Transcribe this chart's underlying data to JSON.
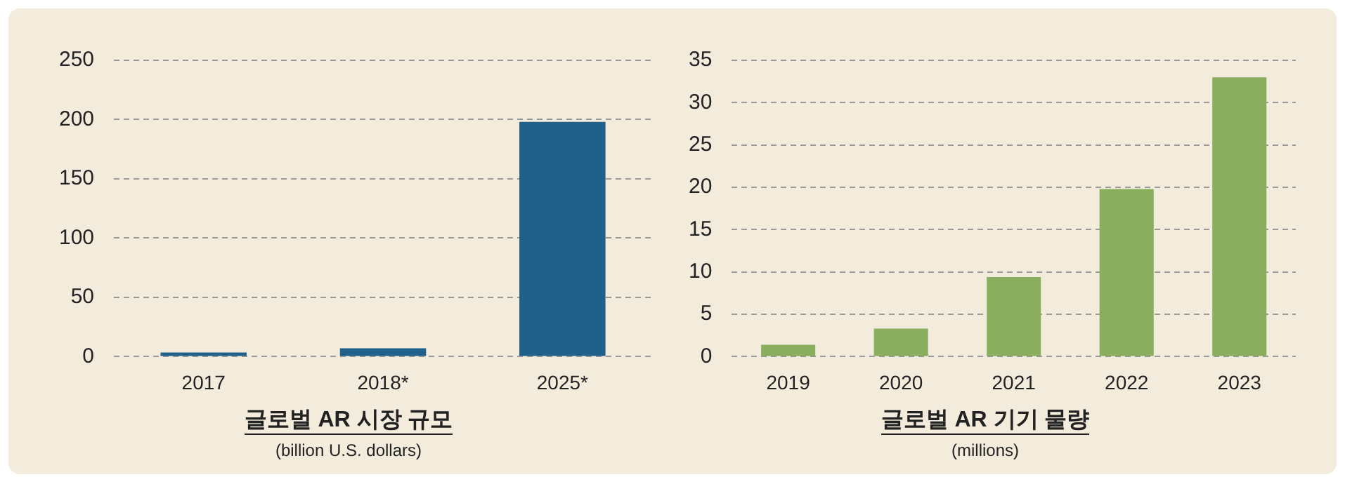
{
  "chart_data": [
    {
      "type": "bar",
      "title": "글로벌 AR 시장 규모",
      "subtitle": "(billion U.S. dollars)",
      "categories": [
        "2017",
        "2018*",
        "2025*"
      ],
      "values": [
        3.5,
        7,
        198
      ],
      "color": "#1f618a",
      "ylim": [
        0,
        250
      ],
      "yticks": [
        0,
        50,
        100,
        150,
        200,
        250
      ],
      "grid": "y"
    },
    {
      "type": "bar",
      "title": "글로벌 AR 기기 물량",
      "subtitle": "(millions)",
      "categories": [
        "2019",
        "2020",
        "2021",
        "2022",
        "2023"
      ],
      "values": [
        1.4,
        3.3,
        9.4,
        19.8,
        33.0
      ],
      "color": "#88ae5e",
      "ylim": [
        0,
        35
      ],
      "yticks": [
        0,
        5,
        10,
        15,
        20,
        25,
        30,
        35
      ],
      "grid": "y"
    }
  ]
}
